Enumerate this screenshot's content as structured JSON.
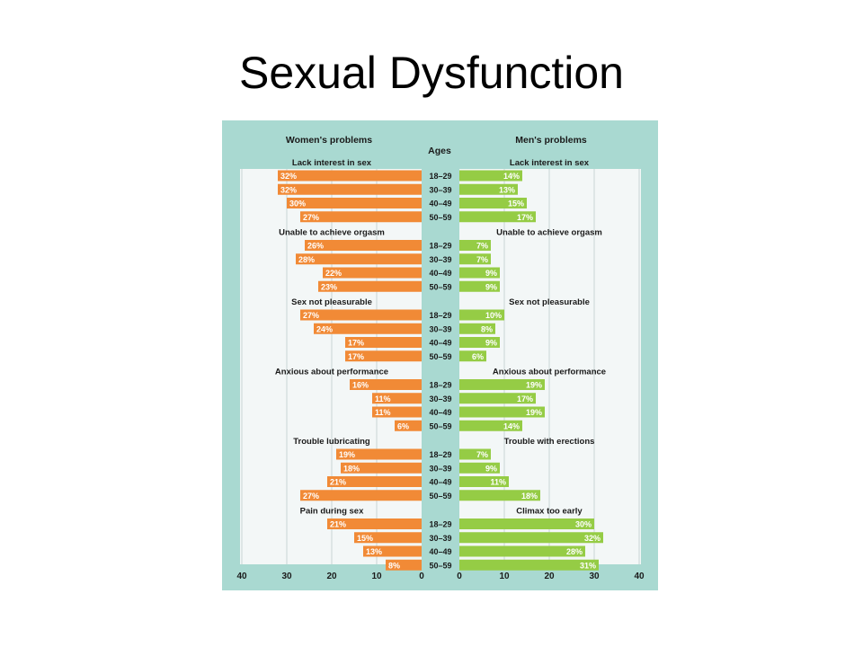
{
  "title": "Sexual Dysfunction",
  "colors": {
    "frame": "#a9d9d1",
    "panel": "#f3f7f7",
    "grid": "#c8d6d6",
    "women_bar": "#f18a36",
    "men_bar": "#95cc45",
    "value_text": "#ffffff"
  },
  "chart_data": {
    "type": "bar",
    "orientation": "horizontal-butterfly",
    "left_header": "Women's problems",
    "right_header": "Men's problems",
    "center_header": "Ages",
    "ages": [
      "18–29",
      "30–39",
      "40–49",
      "50–59"
    ],
    "axis_ticks": [
      40,
      30,
      20,
      10,
      0
    ],
    "xlim": [
      0,
      40
    ],
    "unit": "%",
    "grid": true,
    "groups": [
      {
        "women_label": "Lack interest in sex",
        "men_label": "Lack interest in sex",
        "women": [
          32,
          32,
          30,
          27
        ],
        "men": [
          14,
          13,
          15,
          17
        ]
      },
      {
        "women_label": "Unable to achieve orgasm",
        "men_label": "Unable to achieve orgasm",
        "women": [
          26,
          28,
          22,
          23
        ],
        "men": [
          7,
          7,
          9,
          9
        ]
      },
      {
        "women_label": "Sex not pleasurable",
        "men_label": "Sex not pleasurable",
        "women": [
          27,
          24,
          17,
          17
        ],
        "men": [
          10,
          8,
          9,
          6
        ]
      },
      {
        "women_label": "Anxious about performance",
        "men_label": "Anxious about performance",
        "women": [
          16,
          11,
          11,
          6
        ],
        "men": [
          19,
          17,
          19,
          14
        ]
      },
      {
        "women_label": "Trouble lubricating",
        "men_label": "Trouble with erections",
        "women": [
          19,
          18,
          21,
          27
        ],
        "men": [
          7,
          9,
          11,
          18
        ]
      },
      {
        "women_label": "Pain during sex",
        "men_label": "Climax too early",
        "women": [
          21,
          15,
          13,
          8
        ],
        "men": [
          30,
          32,
          28,
          31
        ]
      }
    ]
  }
}
